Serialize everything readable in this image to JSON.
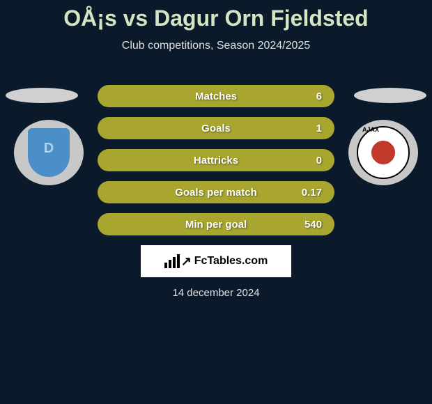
{
  "title": "OÅ¡s vs Dagur Orn Fjeldsted",
  "subtitle": "Club competitions, Season 2024/2025",
  "stats": [
    {
      "label": "Matches",
      "value": "6"
    },
    {
      "label": "Goals",
      "value": "1"
    },
    {
      "label": "Hattricks",
      "value": "0"
    },
    {
      "label": "Goals per match",
      "value": "0.17"
    },
    {
      "label": "Min per goal",
      "value": "540"
    }
  ],
  "branding": "FcTables.com",
  "date": "14 december 2024",
  "colors": {
    "bar": "#a8a62e",
    "title": "#d4e5c5",
    "background": "#0a1a2a",
    "ellipse": "#d0d0d0",
    "badge_bg": "#c8c8c8",
    "left_shield": "#4a8fc7",
    "right_red": "#c0392b"
  }
}
